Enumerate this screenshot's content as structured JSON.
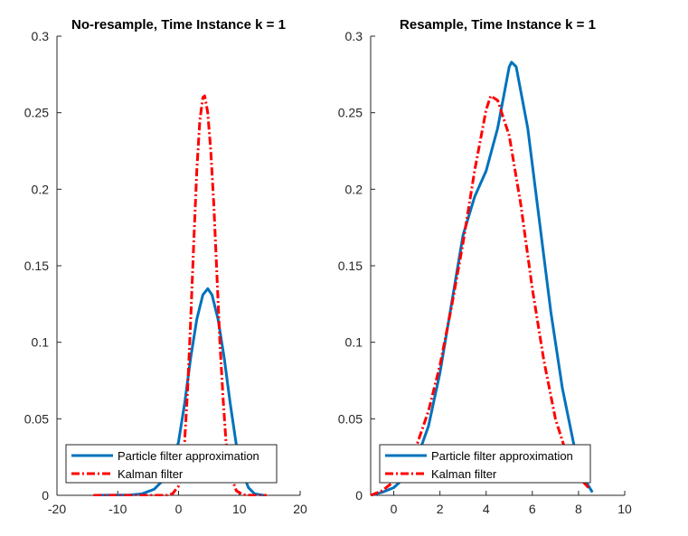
{
  "chart_data": [
    {
      "type": "line",
      "title": "No-resample, Time Instance k = 1",
      "xlabel": "",
      "ylabel": "",
      "xlim": [
        -20,
        20
      ],
      "ylim": [
        0,
        0.3
      ],
      "xticks": [
        -20,
        -10,
        0,
        10,
        20
      ],
      "yticks": [
        0,
        0.05,
        0.1,
        0.15,
        0.2,
        0.25,
        0.3
      ],
      "ytick_labels": [
        "0",
        "0.05",
        "0.1",
        "0.15",
        "0.2",
        "0.25",
        "0.3"
      ],
      "grid": false,
      "legend_position": "bottom-left",
      "series": [
        {
          "name": "Particle filter approximation",
          "color": "#0072BD",
          "style": "solid",
          "points": [
            [
              -14,
              0
            ],
            [
              -8,
              0.0002
            ],
            [
              -6,
              0.001
            ],
            [
              -4,
              0.004
            ],
            [
              -2,
              0.012
            ],
            [
              -1,
              0.02
            ],
            [
              0,
              0.035
            ],
            [
              1,
              0.06
            ],
            [
              2,
              0.09
            ],
            [
              3,
              0.115
            ],
            [
              4,
              0.131
            ],
            [
              4.8,
              0.135
            ],
            [
              5.5,
              0.131
            ],
            [
              6.5,
              0.115
            ],
            [
              7.5,
              0.09
            ],
            [
              8.5,
              0.06
            ],
            [
              9.5,
              0.033
            ],
            [
              10.5,
              0.015
            ],
            [
              11.5,
              0.005
            ],
            [
              12.5,
              0.001
            ],
            [
              14,
              0
            ]
          ]
        },
        {
          "name": "Kalman filter",
          "color": "#FF0000",
          "style": "dashdot",
          "points": [
            [
              -14,
              0
            ],
            [
              -2,
              0
            ],
            [
              -1,
              0.001
            ],
            [
              0,
              0.006
            ],
            [
              0.5,
              0.015
            ],
            [
              1,
              0.035
            ],
            [
              1.5,
              0.07
            ],
            [
              2,
              0.115
            ],
            [
              2.5,
              0.165
            ],
            [
              3,
              0.212
            ],
            [
              3.5,
              0.245
            ],
            [
              4,
              0.26
            ],
            [
              4.3,
              0.261
            ],
            [
              4.8,
              0.25
            ],
            [
              5.3,
              0.225
            ],
            [
              5.8,
              0.19
            ],
            [
              6.3,
              0.145
            ],
            [
              6.8,
              0.1
            ],
            [
              7.3,
              0.065
            ],
            [
              7.8,
              0.035
            ],
            [
              8.5,
              0.014
            ],
            [
              9.5,
              0.003
            ],
            [
              10.5,
              0.0005
            ],
            [
              12,
              0
            ],
            [
              14.5,
              0
            ]
          ]
        }
      ]
    },
    {
      "type": "line",
      "title": "Resample, Time Instance k = 1",
      "xlabel": "",
      "ylabel": "",
      "xlim": [
        -1,
        10
      ],
      "ylim": [
        0,
        0.3
      ],
      "xticks": [
        0,
        2,
        4,
        6,
        8,
        10
      ],
      "yticks": [
        0,
        0.05,
        0.1,
        0.15,
        0.2,
        0.25,
        0.3
      ],
      "ytick_labels": [
        "0",
        "0.05",
        "0.1",
        "0.15",
        "0.2",
        "0.25",
        "0.3"
      ],
      "grid": false,
      "legend_position": "bottom-left",
      "series": [
        {
          "name": "Particle filter approximation",
          "color": "#0072BD",
          "style": "solid",
          "points": [
            [
              -1,
              0
            ],
            [
              -0.5,
              0.002
            ],
            [
              0,
              0.005
            ],
            [
              0.5,
              0.012
            ],
            [
              1,
              0.024
            ],
            [
              1.5,
              0.045
            ],
            [
              2,
              0.08
            ],
            [
              2.5,
              0.125
            ],
            [
              3,
              0.17
            ],
            [
              3.5,
              0.195
            ],
            [
              4,
              0.212
            ],
            [
              4.5,
              0.24
            ],
            [
              5,
              0.28
            ],
            [
              5.1,
              0.283
            ],
            [
              5.3,
              0.28
            ],
            [
              5.8,
              0.24
            ],
            [
              6.3,
              0.18
            ],
            [
              6.8,
              0.12
            ],
            [
              7.3,
              0.07
            ],
            [
              7.8,
              0.033
            ],
            [
              8.2,
              0.012
            ],
            [
              8.6,
              0.002
            ]
          ]
        },
        {
          "name": "Kalman filter",
          "color": "#FF0000",
          "style": "dashdot",
          "points": [
            [
              -1,
              0
            ],
            [
              -0.5,
              0.003
            ],
            [
              0,
              0.009
            ],
            [
              0.5,
              0.018
            ],
            [
              1,
              0.033
            ],
            [
              1.5,
              0.055
            ],
            [
              2,
              0.085
            ],
            [
              2.5,
              0.123
            ],
            [
              3,
              0.165
            ],
            [
              3.5,
              0.212
            ],
            [
              4,
              0.252
            ],
            [
              4.2,
              0.261
            ],
            [
              4.5,
              0.258
            ],
            [
              5,
              0.235
            ],
            [
              5.5,
              0.19
            ],
            [
              6,
              0.135
            ],
            [
              6.5,
              0.088
            ],
            [
              7,
              0.05
            ],
            [
              7.5,
              0.026
            ],
            [
              8,
              0.012
            ],
            [
              8.5,
              0.004
            ]
          ]
        }
      ]
    }
  ]
}
